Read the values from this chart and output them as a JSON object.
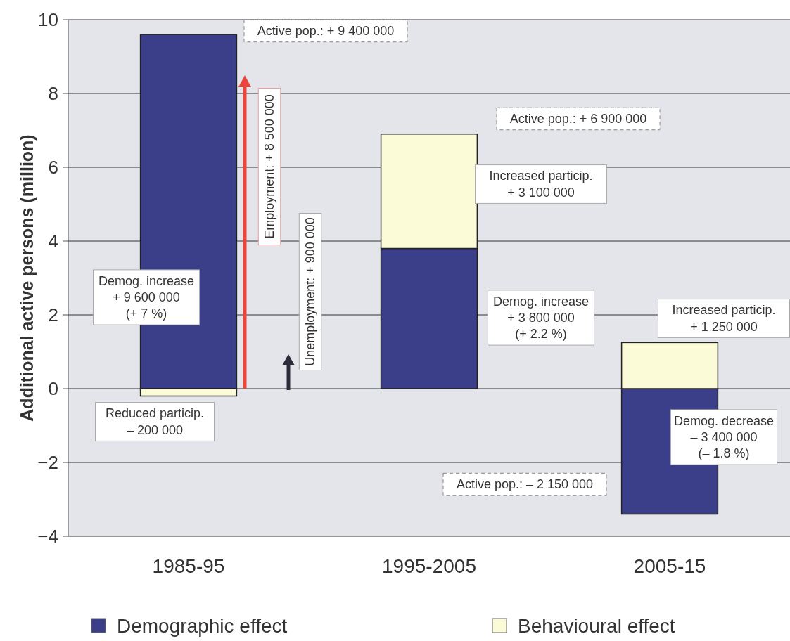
{
  "chart_data": {
    "type": "bar",
    "stacked": true,
    "categories": [
      "1985-95",
      "1995-2005",
      "2005-15"
    ],
    "ylabel": "Additional active persons (million)",
    "ylim": [
      -4,
      10
    ],
    "yticks": [
      {
        "value": -4,
        "label": "−4"
      },
      {
        "value": -2,
        "label": "−2"
      },
      0,
      2,
      4,
      6,
      8,
      10
    ],
    "grid": "y",
    "legend": "bottom",
    "series": [
      {
        "name": "Demographic effect",
        "color": "#3b3f8a",
        "values": [
          9.6,
          3.8,
          -3.4
        ]
      },
      {
        "name": "Behavioural effect",
        "color": "#fbfbd8",
        "values": [
          -0.2,
          3.1,
          1.25
        ]
      }
    ],
    "annotations": [
      "Active pop.: + 9 400 000",
      "Active pop.: + 6 900 000",
      "Active pop.: – 2 150 000",
      "Employment: + 8 500 000",
      "Unemployment: + 900 000",
      "Demog. increase\n+ 9 600 000\n(+ 7 %)",
      "Demog. increase\n+ 3 800 000\n(+ 2.2 %)",
      "Demog. decrease\n– 3 400 000\n(– 1.8 %)",
      "Reduced particip.\n– 200 000",
      "Increased particip.\n+ 3 100 000",
      "Increased particip.\n+ 1 250 000"
    ]
  }
}
